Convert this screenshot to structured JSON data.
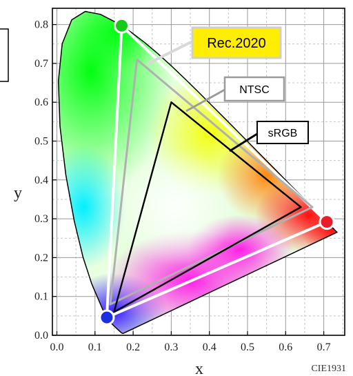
{
  "chart_data": {
    "type": "scatter",
    "xlabel": "x",
    "ylabel": "y",
    "xlim": [
      0.0,
      0.75
    ],
    "ylim": [
      0.0,
      0.85
    ],
    "x_ticks": [
      "0.0",
      "0.1",
      "0.2",
      "0.3",
      "0.4",
      "0.5",
      "0.6",
      "0.7"
    ],
    "y_ticks": [
      "0.0",
      "0.1",
      "0.2",
      "0.3",
      "0.4",
      "0.5",
      "0.6",
      "0.7",
      "0.8"
    ],
    "grid": true,
    "caption": "CIE1931",
    "spectral_locus": [
      [
        0.1741,
        0.005
      ],
      [
        0.1738,
        0.0049
      ],
      [
        0.1733,
        0.0048
      ],
      [
        0.1726,
        0.0048
      ],
      [
        0.1714,
        0.0051
      ],
      [
        0.1689,
        0.0069
      ],
      [
        0.1644,
        0.0109
      ],
      [
        0.1566,
        0.0177
      ],
      [
        0.144,
        0.0297
      ],
      [
        0.1241,
        0.0578
      ],
      [
        0.0913,
        0.1327
      ],
      [
        0.0687,
        0.2007
      ],
      [
        0.0454,
        0.295
      ],
      [
        0.0235,
        0.4127
      ],
      [
        0.0082,
        0.5384
      ],
      [
        0.0039,
        0.6548
      ],
      [
        0.0139,
        0.7502
      ],
      [
        0.0389,
        0.812
      ],
      [
        0.0743,
        0.8338
      ],
      [
        0.1142,
        0.8262
      ],
      [
        0.1547,
        0.8059
      ],
      [
        0.1929,
        0.7816
      ],
      [
        0.2296,
        0.7543
      ],
      [
        0.2658,
        0.7243
      ],
      [
        0.3016,
        0.6923
      ],
      [
        0.3373,
        0.6589
      ],
      [
        0.3731,
        0.6245
      ],
      [
        0.4087,
        0.5896
      ],
      [
        0.4441,
        0.5547
      ],
      [
        0.4788,
        0.5202
      ],
      [
        0.5125,
        0.4866
      ],
      [
        0.5448,
        0.4544
      ],
      [
        0.5752,
        0.4242
      ],
      [
        0.6029,
        0.3965
      ],
      [
        0.627,
        0.3725
      ],
      [
        0.6482,
        0.3514
      ],
      [
        0.6658,
        0.334
      ],
      [
        0.6801,
        0.3197
      ],
      [
        0.6915,
        0.3083
      ],
      [
        0.7006,
        0.2993
      ],
      [
        0.7079,
        0.292
      ],
      [
        0.714,
        0.2859
      ],
      [
        0.719,
        0.2809
      ],
      [
        0.723,
        0.277
      ],
      [
        0.726,
        0.274
      ],
      [
        0.7283,
        0.2717
      ],
      [
        0.73,
        0.27
      ],
      [
        0.7311,
        0.2689
      ],
      [
        0.732,
        0.268
      ],
      [
        0.7334,
        0.2666
      ],
      [
        0.7347,
        0.2653
      ]
    ],
    "gamuts": [
      {
        "name": "Rec.2020",
        "color": "#ffffff",
        "label_bg": "#ffee00",
        "vertices": [
          [
            0.708,
            0.292
          ],
          [
            0.17,
            0.797
          ],
          [
            0.131,
            0.046
          ]
        ]
      },
      {
        "name": "NTSC",
        "color": "#b0b0b0",
        "label_bg": "#ffffff",
        "vertices": [
          [
            0.67,
            0.33
          ],
          [
            0.21,
            0.71
          ],
          [
            0.14,
            0.08
          ]
        ]
      },
      {
        "name": "sRGB",
        "color": "#000000",
        "label_bg": "#ffffff",
        "vertices": [
          [
            0.64,
            0.33
          ],
          [
            0.3,
            0.6
          ],
          [
            0.15,
            0.06
          ]
        ]
      }
    ],
    "primary_markers": [
      {
        "color": "#e81c2a",
        "x": 0.708,
        "y": 0.292
      },
      {
        "color": "#18c81a",
        "x": 0.17,
        "y": 0.797
      },
      {
        "color": "#1a2fe0",
        "x": 0.131,
        "y": 0.046
      }
    ]
  }
}
